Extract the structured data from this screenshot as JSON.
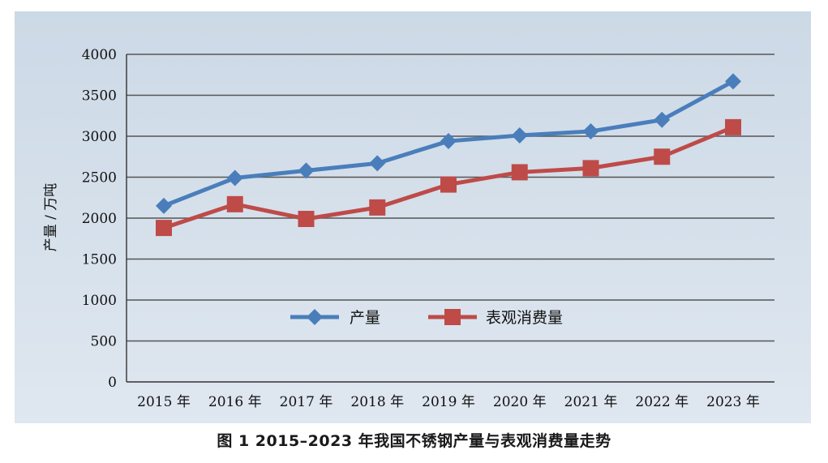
{
  "caption": "图 1   2015–2023 年我国不锈钢产量与表观消费量走势",
  "chart_data": {
    "type": "line",
    "title": "",
    "xlabel": "",
    "ylabel": "产量 / 万吨",
    "categories": [
      "2015 年",
      "2016 年",
      "2017 年",
      "2018 年",
      "2019 年",
      "2020 年",
      "2021 年",
      "2022 年",
      "2023 年"
    ],
    "ylim": [
      0,
      4000
    ],
    "yticks": [
      0,
      500,
      1000,
      1500,
      2000,
      2500,
      3000,
      3500,
      4000
    ],
    "grid": "horizontal",
    "legend_position": "center",
    "series": [
      {
        "name": "产量",
        "marker": "diamond",
        "color": "#4a7ebb",
        "values": [
          2150,
          2490,
          2580,
          2670,
          2940,
          3010,
          3060,
          3200,
          3670
        ]
      },
      {
        "name": "表观消费量",
        "marker": "square",
        "color": "#be4b48",
        "values": [
          1880,
          2170,
          1990,
          2130,
          2410,
          2560,
          2610,
          2750,
          3110
        ]
      }
    ]
  }
}
